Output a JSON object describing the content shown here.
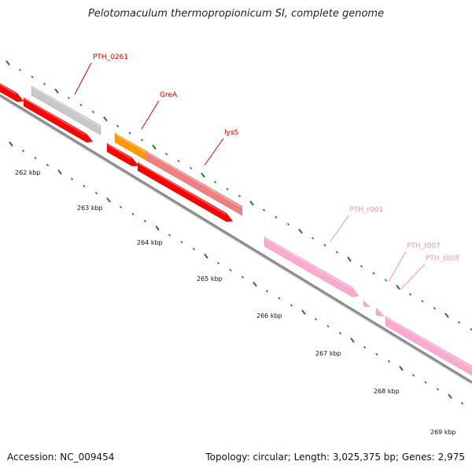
{
  "title": "Pelotomaculum thermopropionicum SI, complete genome",
  "footer": {
    "accession": "Accession: NC_009454",
    "summary": "Topology: circular; Length: 3,025,375 bp; Genes: 2,975"
  },
  "colors": {
    "backbone": "#8a8a8a",
    "tick": "#1e7a1e",
    "red_gene": "#ff0000",
    "grey_gene": "#c8c8c8",
    "orange_gene": "#ff9900",
    "salmon_gene": "#f08080",
    "pink_gene": "#ffa8d0",
    "red_label": "#cc0000",
    "pink_label": "#f090c0"
  },
  "scale_labels": [
    "262 kbp",
    "263 kbp",
    "264 kbp",
    "265 kbp",
    "266 kbp",
    "267 kbp",
    "268 kbp",
    "269 kbp"
  ],
  "gene_labels": [
    {
      "text": "PTH_0261",
      "group": "red"
    },
    {
      "text": "GreA",
      "group": "red"
    },
    {
      "text": "lysS",
      "group": "red"
    },
    {
      "text": "PTH_r001",
      "group": "pink"
    },
    {
      "text": "PTH_t007",
      "group": "pink"
    },
    {
      "text": "PTH_t008",
      "group": "pink"
    }
  ]
}
